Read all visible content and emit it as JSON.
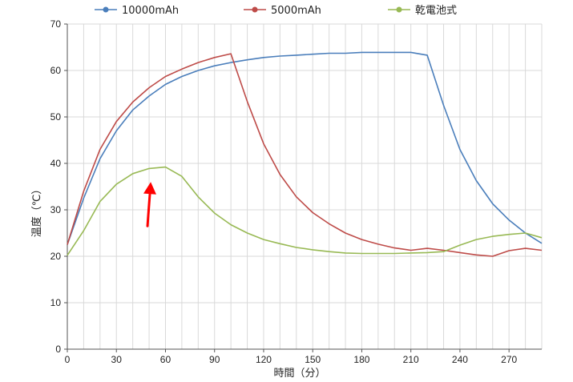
{
  "chart_data": {
    "type": "line",
    "title": "",
    "xlabel": "時間（分）",
    "ylabel": "温度（℃）",
    "xlim": [
      0,
      290
    ],
    "ylim": [
      0,
      70
    ],
    "x_ticks": [
      0,
      30,
      60,
      90,
      120,
      150,
      180,
      210,
      240,
      270
    ],
    "y_ticks": [
      0,
      10,
      20,
      30,
      40,
      50,
      60,
      70
    ],
    "grid": "vertical every 10, horizontal every 10",
    "legend_position": "top",
    "x": [
      0,
      10,
      20,
      30,
      40,
      50,
      60,
      70,
      80,
      90,
      100,
      110,
      120,
      130,
      140,
      150,
      160,
      170,
      180,
      190,
      200,
      210,
      220,
      230,
      240,
      250,
      260,
      270,
      280,
      290
    ],
    "series": [
      {
        "name": "10000mAh",
        "color": "#4a7ebb",
        "values": [
          22.5,
          32.5,
          41,
          47,
          51.5,
          54.5,
          57,
          58.7,
          60,
          61,
          61.7,
          62.3,
          62.8,
          63.1,
          63.3,
          63.5,
          63.7,
          63.7,
          63.9,
          63.9,
          63.9,
          63.9,
          63.3,
          52.5,
          43,
          36.3,
          31.3,
          27.8,
          25,
          22.8
        ]
      },
      {
        "name": "5000mAh",
        "color": "#be4b48",
        "values": [
          22.5,
          34,
          43,
          49,
          53.2,
          56.3,
          58.7,
          60.3,
          61.7,
          62.8,
          63.6,
          53.3,
          44.2,
          37.6,
          32.8,
          29.4,
          27,
          25,
          23.6,
          22.6,
          21.8,
          21.3,
          21.7,
          21.3,
          20.8,
          20.3,
          20,
          21.2,
          21.7,
          21.3
        ]
      },
      {
        "name": "乾電池式",
        "color": "#98b954",
        "values": [
          20.2,
          25.5,
          31.8,
          35.5,
          37.8,
          38.9,
          39.2,
          37.2,
          32.8,
          29.3,
          26.8,
          25,
          23.6,
          22.7,
          21.9,
          21.4,
          21,
          20.7,
          20.6,
          20.6,
          20.6,
          20.7,
          20.8,
          21,
          22.4,
          23.6,
          24.3,
          24.7,
          25,
          24
        ]
      }
    ],
    "annotation": {
      "type": "arrow",
      "color": "#ff0000",
      "from": [
        49,
        26.5
      ],
      "to": [
        51,
        36
      ]
    }
  }
}
